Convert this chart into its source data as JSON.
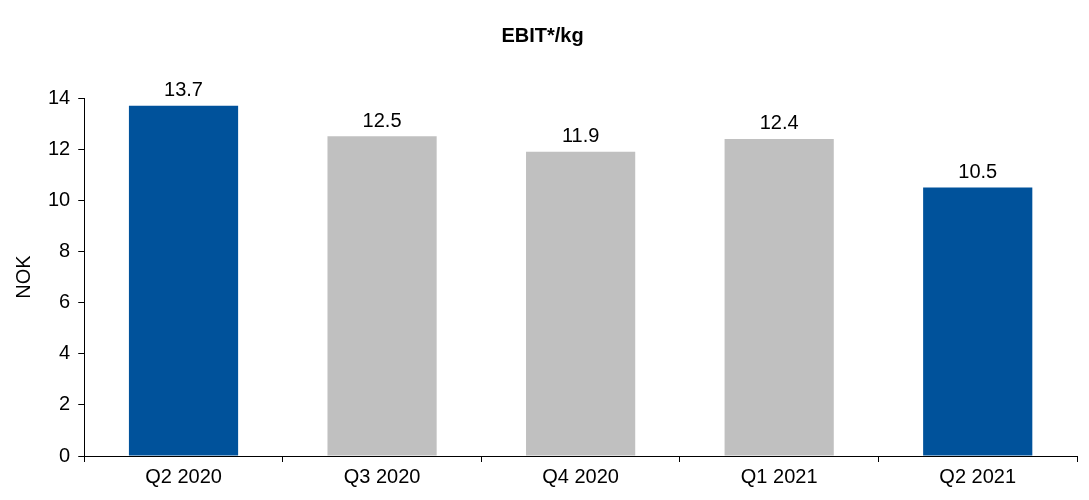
{
  "chart_data": {
    "type": "bar",
    "title": "EBIT*/kg",
    "ylabel": "NOK",
    "categories": [
      "Q2 2020",
      "Q3 2020",
      "Q4 2020",
      "Q1 2021",
      "Q2 2021"
    ],
    "values": [
      13.7,
      12.5,
      11.9,
      12.4,
      10.5
    ],
    "colors": [
      "#00529b",
      "#c0c0c0",
      "#c0c0c0",
      "#c0c0c0",
      "#00529b"
    ],
    "ylim": [
      0,
      14
    ],
    "yticks": [
      0,
      2,
      4,
      6,
      8,
      10,
      12,
      14
    ],
    "data_labels": true
  }
}
